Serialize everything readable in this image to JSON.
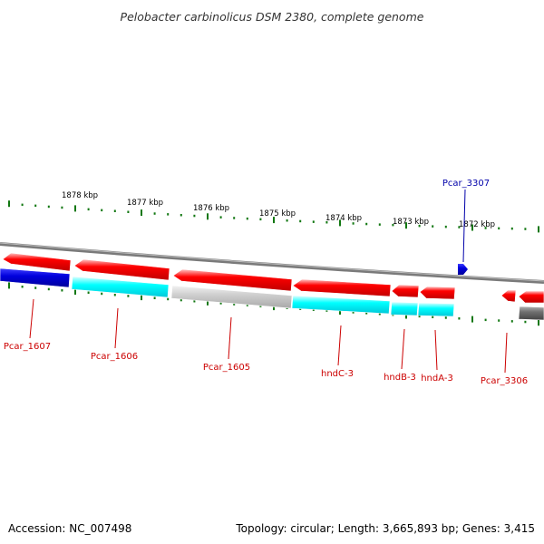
{
  "title": "Pelobacter carbinolicus DSM 2380, complete genome",
  "footer": {
    "accession": "Accession: NC_007498",
    "summary": "Topology: circular; Length: 3,665,893 bp; Genes: 3,415"
  },
  "colors": {
    "forward_gene": "#0000cc",
    "forward_label": "#0000aa",
    "reverse_gene": "#ff0000",
    "reverse_label": "#cc0000",
    "tick": "#117711",
    "backbone": "#888888",
    "cyan_feature": "#00ffff",
    "gray_feature": "#cccccc",
    "dark_feature": "#666666"
  },
  "chart_data": {
    "type": "genome-map",
    "title": "Pelobacter carbinolicus DSM 2380, complete genome",
    "scale_labels": [
      "1878 kbp",
      "1877 kbp",
      "1876 kbp",
      "1875 kbp",
      "1874 kbp",
      "1873 kbp",
      "1872 kbp"
    ],
    "gene_labels": [
      {
        "name": "Pcar_3307",
        "strand": "forward"
      },
      {
        "name": "Pcar_1607",
        "strand": "reverse"
      },
      {
        "name": "Pcar_1606",
        "strand": "reverse"
      },
      {
        "name": "Pcar_1605",
        "strand": "reverse"
      },
      {
        "name": "hndC-3",
        "strand": "reverse"
      },
      {
        "name": "hndB-3",
        "strand": "reverse"
      },
      {
        "name": "hndA-3",
        "strand": "reverse"
      },
      {
        "name": "Pcar_3306",
        "strand": "reverse"
      }
    ]
  }
}
